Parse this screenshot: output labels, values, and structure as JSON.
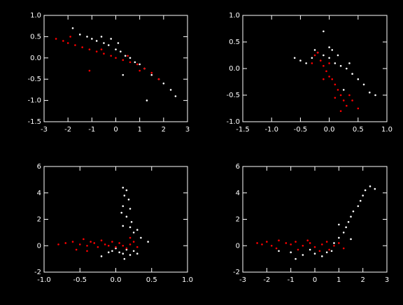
{
  "chart_data": [
    {
      "type": "scatter",
      "xlim": [
        -3,
        3
      ],
      "ylim": [
        -1.5,
        1.0
      ],
      "xticks": [
        -3,
        -2,
        -1,
        0,
        1,
        2,
        3
      ],
      "yticks": [
        {
          "value": -1.5,
          "label": "-1.5"
        },
        {
          "value": -1.0,
          "label": "-1.0"
        },
        {
          "value": -0.5,
          "label": "-0.5"
        },
        {
          "value": 0.0,
          "label": "0.0"
        },
        {
          "value": 0.5,
          "label": "0.5"
        },
        {
          "value": 1.0,
          "label": "1.0"
        }
      ],
      "series": [
        {
          "color": "#ffffff",
          "x": [
            -1.5,
            -1.2,
            -1,
            -0.8,
            -0.5,
            -0.3,
            0,
            0.2,
            0.4,
            0.6,
            0.8,
            1,
            1.2,
            1.5,
            1.8,
            2,
            2.3,
            2.5,
            -0.6,
            -0.2,
            0.1,
            -1.8,
            0.3,
            1.3
          ],
          "y": [
            0.55,
            0.5,
            0.45,
            0.4,
            0.35,
            0.3,
            0.2,
            0.15,
            0.05,
            0,
            -0.1,
            -0.15,
            -0.25,
            -0.4,
            -0.5,
            -0.6,
            -0.75,
            -0.9,
            0.5,
            0.45,
            0.35,
            0.7,
            -0.4,
            -1.0
          ]
        },
        {
          "color": "#ff0000",
          "x": [
            -2.5,
            -2.2,
            -2,
            -1.7,
            -1.4,
            -1.1,
            -0.8,
            -0.5,
            -0.2,
            0,
            0.3,
            0.6,
            0.9,
            1.2,
            1.5,
            1.8,
            -1.9,
            -0.6,
            0.5,
            1.0,
            -1.1
          ],
          "y": [
            0.45,
            0.4,
            0.35,
            0.3,
            0.25,
            0.2,
            0.15,
            0.1,
            0.05,
            0,
            -0.05,
            -0.1,
            -0.15,
            -0.25,
            -0.35,
            -0.5,
            0.5,
            0.2,
            0.05,
            -0.3,
            -0.3
          ]
        }
      ]
    },
    {
      "type": "scatter",
      "xlim": [
        -1.5,
        1.0
      ],
      "ylim": [
        -1.0,
        1.0
      ],
      "xticks": [
        {
          "value": -1.5,
          "label": "-1.5"
        },
        {
          "value": -1.0,
          "label": "-1.0"
        },
        {
          "value": -0.5,
          "label": "-0.5"
        },
        {
          "value": 0.0,
          "label": "0.0"
        },
        {
          "value": 0.5,
          "label": "0.5"
        },
        {
          "value": 1.0,
          "label": "1.0"
        }
      ],
      "yticks": [
        {
          "value": -1.0,
          "label": "-1.0"
        },
        {
          "value": -0.5,
          "label": "-0.5"
        },
        {
          "value": 0.0,
          "label": "0.0"
        },
        {
          "value": 0.5,
          "label": "0.5"
        },
        {
          "value": 1.0,
          "label": "1.0"
        }
      ],
      "series": [
        {
          "color": "#ffffff",
          "x": [
            -0.3,
            -0.2,
            -0.1,
            0,
            0.1,
            0.2,
            0.3,
            0.4,
            0.5,
            0.6,
            -0.5,
            -0.4,
            0.05,
            0.15,
            0.35,
            0.7,
            0.8,
            -0.25,
            0.25,
            0,
            -0.6,
            -0.1
          ],
          "y": [
            0.2,
            0.3,
            0.25,
            0.2,
            0.1,
            0.05,
            0,
            -0.1,
            -0.2,
            -0.3,
            0.15,
            0.1,
            0.35,
            0.25,
            0.1,
            -0.45,
            -0.5,
            0.35,
            -0.4,
            0.4,
            0.2,
            0.7
          ]
        },
        {
          "color": "#ff0000",
          "x": [
            -0.2,
            -0.15,
            -0.1,
            -0.05,
            0,
            0.05,
            0.1,
            0.15,
            0.2,
            0.25,
            0.3,
            0.2,
            0.1,
            0.35,
            -0.3,
            -0.25,
            0.4,
            0.5,
            0,
            -0.1
          ],
          "y": [
            0.3,
            0.15,
            0.05,
            -0.05,
            -0.15,
            -0.2,
            -0.3,
            -0.4,
            -0.5,
            -0.6,
            -0.7,
            -0.8,
            -0.55,
            -0.5,
            0.1,
            0.25,
            -0.6,
            -0.75,
            0.1,
            -0.2
          ]
        }
      ]
    },
    {
      "type": "scatter",
      "xlim": [
        -1.0,
        1.0
      ],
      "ylim": [
        -2,
        6
      ],
      "xticks": [
        {
          "value": -1.0,
          "label": "-1.0"
        },
        {
          "value": -0.5,
          "label": "-0.5"
        },
        {
          "value": 0.0,
          "label": "0.0"
        },
        {
          "value": 0.5,
          "label": "0.5"
        },
        {
          "value": 1.0,
          "label": "1.0"
        }
      ],
      "yticks": [
        -2,
        0,
        2,
        4,
        6
      ],
      "series": [
        {
          "color": "#ffffff",
          "x": [
            0.1,
            0.15,
            0.12,
            0.18,
            0.1,
            0.2,
            0.08,
            0.15,
            0.22,
            0.1,
            0.3,
            0.25,
            0.35,
            0.05,
            0.1,
            -0.05,
            0.2,
            0.15,
            0,
            -0.1,
            0.25,
            -0.2,
            0.3,
            0.12,
            0.45,
            0.2
          ],
          "y": [
            4.4,
            4.2,
            3.8,
            3.5,
            3.0,
            2.8,
            2.5,
            2.2,
            1.8,
            1.5,
            1.2,
            1.0,
            0.6,
            -0.5,
            -0.6,
            -0.4,
            -0.7,
            -0.3,
            -0.2,
            -0.5,
            -0.4,
            -0.8,
            -0.6,
            -1.0,
            0.3,
            1.4
          ]
        },
        {
          "color": "#ff0000",
          "x": [
            -0.7,
            -0.6,
            -0.5,
            -0.45,
            -0.4,
            -0.35,
            -0.3,
            -0.25,
            -0.2,
            -0.15,
            -0.1,
            -0.05,
            0,
            0.05,
            0.1,
            0.15,
            0.2,
            0.25,
            -0.55,
            -0.4,
            0.3,
            0.2,
            -0.8
          ],
          "y": [
            0.2,
            0.3,
            0.1,
            0.5,
            0,
            0.3,
            0.2,
            -0.1,
            0.4,
            0.1,
            0,
            0.3,
            -0.1,
            0.2,
            0,
            -0.2,
            0.1,
            0.3,
            -0.3,
            -0.4,
            -0.1,
            0.6,
            0.1
          ]
        }
      ]
    },
    {
      "type": "scatter",
      "xlim": [
        -3,
        3
      ],
      "ylim": [
        -2,
        6
      ],
      "xticks": [
        -3,
        -2,
        -1,
        0,
        1,
        2,
        3
      ],
      "yticks": [
        -2,
        0,
        2,
        4,
        6
      ],
      "series": [
        {
          "color": "#ffffff",
          "x": [
            2.3,
            2.1,
            2.0,
            1.9,
            1.8,
            1.6,
            1.5,
            1.4,
            1.3,
            1.2,
            1.0,
            0.8,
            1.0,
            0.5,
            0,
            -0.5,
            -1,
            -1.5,
            0.3,
            -0.2,
            0.7,
            1.5,
            -0.8,
            2.5
          ],
          "y": [
            4.5,
            4.2,
            3.8,
            3.4,
            3.0,
            2.6,
            2.2,
            1.8,
            1.4,
            1.0,
            0.6,
            0.2,
            1.6,
            -0.5,
            -0.6,
            -0.7,
            -0.5,
            -0.4,
            -0.8,
            -0.3,
            -0.4,
            0.5,
            -1.0,
            4.3
          ]
        },
        {
          "color": "#ff0000",
          "x": [
            -2.2,
            -2,
            -1.8,
            -1.5,
            -1.2,
            -1,
            -0.8,
            -0.5,
            -0.2,
            0,
            0.3,
            0.5,
            0.8,
            1,
            1.2,
            -0.7,
            -0.3,
            0.6,
            -1.6,
            -2.4,
            0.2
          ],
          "y": [
            0.1,
            0.3,
            0,
            0.4,
            0.2,
            0.1,
            0.3,
            0,
            0.2,
            -0.1,
            0.1,
            0.3,
            0,
            0.2,
            -0.2,
            -0.3,
            0.4,
            -0.3,
            -0.2,
            0.2,
            -0.4
          ]
        }
      ]
    }
  ]
}
